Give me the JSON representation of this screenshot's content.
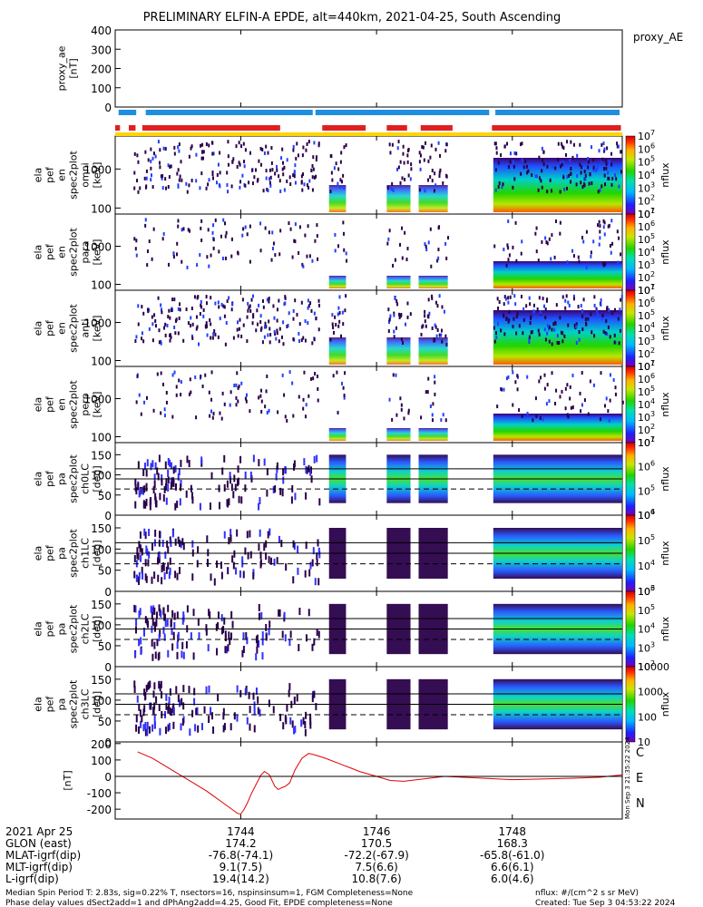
{
  "title": "PRELIMINARY ELFIN-A EPDE, alt=440km, 2021-04-25, South Ascending",
  "chart_data": [
    {
      "type": "line",
      "panel": "proxy_ae",
      "ylabel_lines": [
        "proxy_ae",
        "[nT]"
      ],
      "right_label": "proxy_AE",
      "ylim": [
        0,
        400
      ],
      "yticks": [
        0,
        100,
        200,
        300,
        400
      ],
      "values": [],
      "note": ""
    },
    {
      "type": "heatmap",
      "panel": "energy spectrogram (omni)",
      "ylabel_lines": [
        "ela",
        "pef",
        "en",
        "spec2plot",
        "omni",
        "[keV]"
      ],
      "yscale": "log",
      "yticks": [
        100,
        1000
      ],
      "colorbar": {
        "label": "nflux",
        "min_exp": 1,
        "max_exp": 7
      }
    },
    {
      "type": "heatmap",
      "panel": "energy spectrogram (para)",
      "ylabel_lines": [
        "ela",
        "pef",
        "en",
        "spec2plot",
        "para",
        "[keV]"
      ],
      "yscale": "log",
      "yticks": [
        100,
        1000
      ],
      "colorbar": {
        "label": "nflux",
        "min_exp": 1,
        "max_exp": 7
      }
    },
    {
      "type": "heatmap",
      "panel": "energy spectrogram (anti)",
      "ylabel_lines": [
        "ela",
        "pef",
        "en",
        "spec2plot",
        "anti",
        "[keV]"
      ],
      "yscale": "log",
      "yticks": [
        100,
        1000
      ],
      "colorbar": {
        "label": "nflux",
        "min_exp": 1,
        "max_exp": 7
      }
    },
    {
      "type": "heatmap",
      "panel": "energy spectrogram (perp)",
      "ylabel_lines": [
        "ela",
        "pef",
        "en",
        "spec2plot",
        "perp",
        "[keV]"
      ],
      "yscale": "log",
      "yticks": [
        100,
        1000
      ],
      "colorbar": {
        "label": "nflux",
        "min_exp": 1,
        "max_exp": 7
      }
    },
    {
      "type": "heatmap",
      "panel": "pitch angle ch0LC",
      "ylabel_lines": [
        "ela",
        "pef",
        "pa",
        "spec2plot",
        "ch0LC",
        "[deg]"
      ],
      "ylim": [
        0,
        180
      ],
      "yticks": [
        0,
        50,
        100,
        150
      ],
      "colorbar": {
        "label": "nflux",
        "min_exp": 4,
        "max_exp": 7
      }
    },
    {
      "type": "heatmap",
      "panel": "pitch angle ch1LC",
      "ylabel_lines": [
        "ela",
        "pef",
        "pa",
        "spec2plot",
        "ch1LC",
        "[deg]"
      ],
      "ylim": [
        0,
        180
      ],
      "yticks": [
        0,
        50,
        100,
        150
      ],
      "colorbar": {
        "label": "nflux",
        "min_exp": 3,
        "max_exp": 6
      }
    },
    {
      "type": "heatmap",
      "panel": "pitch angle ch2LC",
      "ylabel_lines": [
        "ela",
        "pef",
        "pa",
        "spec2plot",
        "ch2LC",
        "[deg]"
      ],
      "ylim": [
        0,
        180
      ],
      "yticks": [
        0,
        50,
        100,
        150
      ],
      "colorbar": {
        "label": "nflux",
        "min_exp": 2,
        "max_exp": 6
      }
    },
    {
      "type": "heatmap",
      "panel": "pitch angle ch3LC",
      "ylabel_lines": [
        "ela",
        "pef",
        "pa",
        "spec2plot",
        "ch3LC",
        "[deg]"
      ],
      "ylim": [
        0,
        180
      ],
      "yticks": [
        0,
        50,
        100,
        150
      ],
      "colorbar": {
        "label": "nflux",
        "ticks": [
          "10",
          "100",
          "1000",
          "10000"
        ]
      }
    },
    {
      "type": "line",
      "panel": "magnetic field",
      "ylabel_lines": [
        "[nT]"
      ],
      "ylim": [
        -260,
        210
      ],
      "yticks": [
        -200,
        -100,
        0,
        100,
        200
      ],
      "series": [
        {
          "name": "",
          "color": "#e00000",
          "x": [
            1742.48,
            1742.7,
            1742.9,
            1743.1,
            1743.3,
            1743.5,
            1743.6,
            1743.7,
            1743.8,
            1743.9,
            1743.95,
            1744.0,
            1744.05,
            1744.1,
            1744.15,
            1744.2,
            1744.25,
            1744.3,
            1744.35,
            1744.42,
            1744.5,
            1744.55,
            1744.6,
            1744.66,
            1744.72,
            1744.8,
            1744.9,
            1745.0,
            1745.1,
            1745.25,
            1745.5,
            1745.75,
            1746.0,
            1746.2,
            1746.4,
            1746.7,
            1747.0,
            1747.5,
            1748.0,
            1748.5,
            1749.0,
            1749.3,
            1749.62
          ],
          "y": [
            150,
            110,
            60,
            10,
            -40,
            -90,
            -120,
            -150,
            -180,
            -210,
            -225,
            -230,
            -200,
            -160,
            -110,
            -70,
            -30,
            10,
            30,
            10,
            -60,
            -80,
            -70,
            -60,
            -40,
            40,
            110,
            140,
            130,
            110,
            70,
            30,
            0,
            -25,
            -30,
            -15,
            0,
            -10,
            -20,
            -15,
            -10,
            -5,
            10
          ]
        }
      ],
      "right_labels": [
        "C",
        "E",
        "N"
      ],
      "right_label_colors": [
        "#00d8ff",
        "#e00000",
        "#00c000"
      ],
      "sidebar_text": "Mon Sep 3 21:35:22 2024"
    }
  ],
  "x_axis": {
    "ticks": [
      "1744",
      "1746",
      "1748"
    ],
    "rows": [
      {
        "label": "2021 Apr 25",
        "values": [
          "1744",
          "1746",
          "1748"
        ]
      },
      {
        "label": "GLON (east)",
        "values": [
          "174.2",
          "170.5",
          "168.3"
        ]
      },
      {
        "label": "MLAT-igrf(dip)",
        "values": [
          "-76.8(-74.1)",
          "-72.2(-67.9)",
          "-65.8(-61.0)"
        ]
      },
      {
        "label": "MLT-igrf(dip)",
        "values": [
          "9.1(7.5)",
          "7.5(6.6)",
          "6.6(6.1)"
        ]
      },
      {
        "label": "L-igrf(dip)",
        "values": [
          "19.4(14.2)",
          "10.8(7.6)",
          "6.0(4.6)"
        ]
      }
    ]
  },
  "footer": {
    "line1_left": "Median Spin Period T: 2.83s, sig=0.22% T, nsectors=16, nspinsinsum=1, FGM Completeness=None",
    "line2_left": "Phase delay values dSect2add=1 and dPhAng2add=4.25, Good Fit, EPDE completeness=None",
    "line1_right": "nflux: #/(cm^2 s sr MeV)",
    "line2_right": "Created: Tue Sep  3 04:53:22 2024"
  },
  "colors": {
    "status_blue": "#1e8fe0",
    "status_red": "#e02020",
    "status_yellow": "#ffd400",
    "trace_red": "#e00000"
  }
}
